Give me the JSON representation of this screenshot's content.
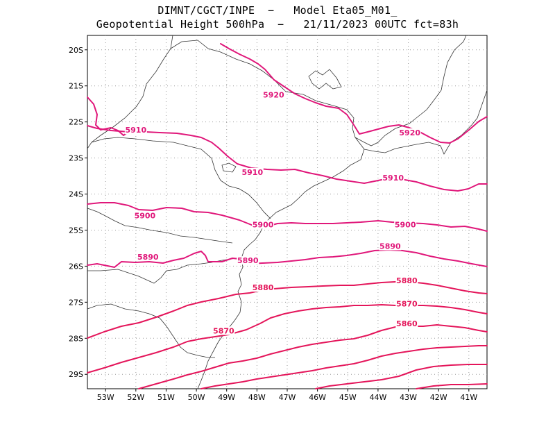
{
  "header": {
    "line1": "DIMNT/CGCT/INPE  −   Model Eta05_M01_",
    "line2": "Geopotential Height 500hPa  −   21/11/2023 00UTC fct=83h"
  },
  "axes": {
    "lat_labels": [
      "20S",
      "21S",
      "22S",
      "23S",
      "24S",
      "25S",
      "26S",
      "27S",
      "28S",
      "29S"
    ],
    "lon_labels": [
      "53W",
      "52W",
      "51W",
      "50W",
      "49W",
      "48W",
      "47W",
      "46W",
      "45W",
      "44W",
      "43W",
      "42W",
      "41W"
    ],
    "lat_range": [
      -29.4,
      -19.6
    ],
    "lon_range": [
      -53.6,
      -40.4
    ]
  },
  "contours": [
    {
      "value": 5920,
      "label": "5920",
      "color": "#e0177a"
    },
    {
      "value": 5910,
      "label": "5910",
      "color": "#e0177a"
    },
    {
      "value": 5900,
      "label": "5900",
      "color": "#e0177a"
    },
    {
      "value": 5890,
      "label": "5890",
      "color": "#e0177a"
    },
    {
      "value": 5880,
      "label": "5880",
      "color": "#e4155a"
    },
    {
      "value": 5870,
      "label": "5870",
      "color": "#e4155a"
    },
    {
      "value": 5860,
      "label": "5860",
      "color": "#e4155a"
    }
  ],
  "contour_labels": [
    {
      "text": "5920",
      "lon": -47.45,
      "lat": -21.3
    },
    {
      "text": "5920",
      "lon": -42.95,
      "lat": -22.35
    },
    {
      "text": "5910",
      "lon": -52.0,
      "lat": -22.28
    },
    {
      "text": "5910",
      "lon": -48.15,
      "lat": -23.45
    },
    {
      "text": "5910",
      "lon": -43.5,
      "lat": -23.6
    },
    {
      "text": "5900",
      "lon": -51.7,
      "lat": -24.65
    },
    {
      "text": "5900",
      "lon": -47.8,
      "lat": -24.9
    },
    {
      "text": "5900",
      "lon": -43.1,
      "lat": -24.9
    },
    {
      "text": "5890",
      "lon": -51.6,
      "lat": -25.8
    },
    {
      "text": "5890",
      "lon": -48.3,
      "lat": -25.9
    },
    {
      "text": "5890",
      "lon": -43.6,
      "lat": -25.5
    },
    {
      "text": "5880",
      "lon": -47.8,
      "lat": -26.65
    },
    {
      "text": "5880",
      "lon": -43.05,
      "lat": -26.45
    },
    {
      "text": "5870",
      "lon": -49.1,
      "lat": -27.85
    },
    {
      "text": "5870",
      "lon": -43.05,
      "lat": -27.1
    },
    {
      "text": "5860",
      "lon": -43.05,
      "lat": -27.65
    }
  ],
  "colors": {
    "contour_main": "#e0177a",
    "contour_south": "#e4155a",
    "coast": "#333333",
    "grid": "#9a9a9a"
  }
}
